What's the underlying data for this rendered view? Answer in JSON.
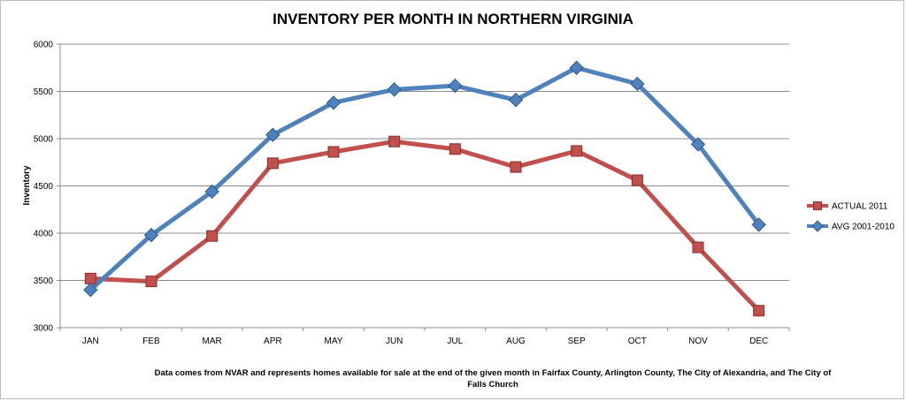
{
  "chart_data": {
    "type": "line",
    "title": "INVENTORY PER MONTH IN NORTHERN VIRGINIA",
    "ylabel": "Inventory",
    "xlabel": "",
    "categories": [
      "JAN",
      "FEB",
      "MAR",
      "APR",
      "MAY",
      "JUN",
      "JUL",
      "AUG",
      "SEP",
      "OCT",
      "NOV",
      "DEC"
    ],
    "ylim": [
      3000,
      6000
    ],
    "yticks": [
      3000,
      3500,
      4000,
      4500,
      5000,
      5500,
      6000
    ],
    "grid": true,
    "legend_position": "right",
    "series": [
      {
        "name": "ACTUAL 2011",
        "marker": "square",
        "color": "#c0504d",
        "values": [
          3520,
          3490,
          3970,
          4740,
          4860,
          4970,
          4890,
          4700,
          4870,
          4560,
          3850,
          3180
        ]
      },
      {
        "name": "AVG 2001-2010",
        "marker": "diamond",
        "color": "#4f81bd",
        "values": [
          3400,
          3980,
          4440,
          5040,
          5380,
          5520,
          5560,
          5410,
          5750,
          5580,
          4940,
          4090
        ]
      }
    ],
    "footnote_lines": [
      "Data comes from NVAR and represents homes available  for sale at the end of the given month in Fairfax  County, Arlington County, The City of Alexandria,  and The City of",
      "Falls Church"
    ]
  }
}
